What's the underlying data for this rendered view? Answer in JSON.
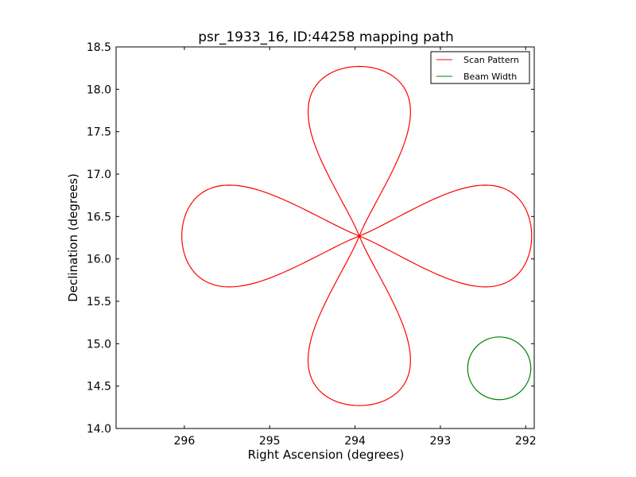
{
  "chart_data": {
    "type": "line",
    "title": "psr_1933_16, ID:44258 mapping path",
    "xlabel": "Right Ascension (degrees)",
    "ylabel": "Declination (degrees)",
    "xlim": [
      296.8,
      291.9
    ],
    "ylim": [
      14.0,
      18.5
    ],
    "x_inverted": true,
    "xticks": [
      296,
      295,
      294,
      293,
      292
    ],
    "xtick_labels": [
      "296",
      "295",
      "294",
      "293",
      "292"
    ],
    "yticks": [
      14.0,
      14.5,
      15.0,
      15.5,
      16.0,
      16.5,
      17.0,
      17.5,
      18.0,
      18.5
    ],
    "ytick_labels": [
      "14.0",
      "14.5",
      "15.0",
      "15.5",
      "16.0",
      "16.5",
      "17.0",
      "17.5",
      "18.0",
      "18.5"
    ],
    "grid": false,
    "legend_position": "top-right",
    "series": [
      {
        "name": "Scan Pattern",
        "color": "#ff0000",
        "shape": "four-petal rose",
        "center": [
          293.95,
          16.27
        ],
        "petal_reach": {
          "east": 2.02,
          "west": 2.08,
          "north": 2.0,
          "south": 2.0
        },
        "petal_half_width": 0.6,
        "start": [
          296.04,
          16.26
        ],
        "end": [
          296.03,
          16.23
        ]
      },
      {
        "name": "Beam Width",
        "color": "#008000",
        "shape": "circle",
        "center": [
          292.31,
          14.71
        ],
        "radius": 0.37
      }
    ]
  }
}
